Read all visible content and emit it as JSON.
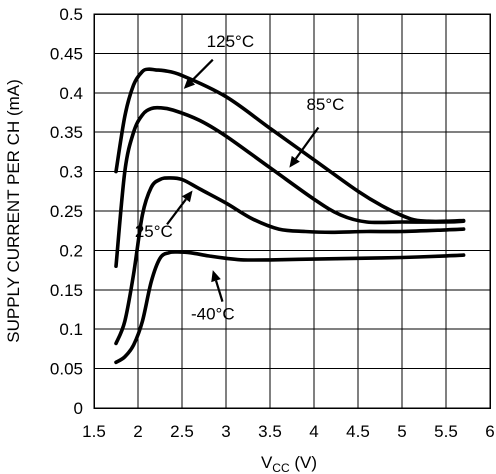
{
  "chart_data": {
    "type": "line",
    "title": "",
    "xlabel": {
      "main": "V",
      "sub": "CC",
      "unit": " (V)"
    },
    "ylabel": "SUPPLY CURRENT PER CH (mA)",
    "xlim": [
      1.5,
      6
    ],
    "ylim": [
      0,
      0.5
    ],
    "grid": true,
    "x_ticks": [
      "1.5",
      "2",
      "2.5",
      "3",
      "3.5",
      "4",
      "4.5",
      "5",
      "5.5",
      "6"
    ],
    "y_ticks": [
      "0",
      "0.05",
      "0.1",
      "0.15",
      "0.2",
      "0.25",
      "0.3",
      "0.35",
      "0.4",
      "0.45",
      "0.5"
    ],
    "series": [
      {
        "name": "125°C",
        "x": [
          1.75,
          1.85,
          1.95,
          2.05,
          2.12,
          2.2,
          2.3,
          2.5,
          3.0,
          3.5,
          4.0,
          4.5,
          4.8,
          5.1,
          5.3,
          5.5,
          5.7
        ],
        "y": [
          0.3,
          0.37,
          0.41,
          0.427,
          0.43,
          0.429,
          0.428,
          0.422,
          0.395,
          0.355,
          0.315,
          0.275,
          0.255,
          0.24,
          0.237,
          0.237,
          0.238
        ]
      },
      {
        "name": "85°C",
        "x": [
          1.75,
          1.85,
          1.95,
          2.05,
          2.15,
          2.25,
          2.4,
          2.7,
          3.0,
          3.5,
          4.0,
          4.3,
          4.6,
          5.0,
          5.5,
          5.7
        ],
        "y": [
          0.18,
          0.3,
          0.35,
          0.372,
          0.38,
          0.381,
          0.378,
          0.365,
          0.345,
          0.305,
          0.265,
          0.245,
          0.236,
          0.236,
          0.236,
          0.237
        ]
      },
      {
        "name": "25°C",
        "x": [
          1.75,
          1.85,
          1.95,
          2.05,
          2.15,
          2.25,
          2.35,
          2.5,
          2.7,
          3.0,
          3.3,
          3.6,
          3.9,
          4.2,
          4.6,
          5.0,
          5.5,
          5.7
        ],
        "y": [
          0.082,
          0.11,
          0.17,
          0.245,
          0.28,
          0.29,
          0.292,
          0.29,
          0.278,
          0.26,
          0.24,
          0.227,
          0.224,
          0.223,
          0.224,
          0.224,
          0.226,
          0.227
        ]
      },
      {
        "name": "-40°C",
        "x": [
          1.75,
          1.85,
          1.95,
          2.05,
          2.15,
          2.25,
          2.35,
          2.45,
          2.6,
          2.8,
          3.0,
          3.2,
          3.5,
          4.0,
          4.5,
          5.0,
          5.5,
          5.7
        ],
        "y": [
          0.058,
          0.065,
          0.08,
          0.11,
          0.16,
          0.19,
          0.197,
          0.198,
          0.197,
          0.193,
          0.19,
          0.188,
          0.188,
          0.189,
          0.19,
          0.191,
          0.193,
          0.194
        ]
      }
    ],
    "annotations": [
      {
        "text": "125°C",
        "series": "125°C",
        "label_at": [
          3.05,
          0.458
        ],
        "arrow_from": [
          2.85,
          0.442
        ],
        "arrow_to": [
          2.52,
          0.405
        ]
      },
      {
        "text": "85°C",
        "series": "85°C",
        "label_at": [
          4.13,
          0.378
        ],
        "arrow_from": [
          4.05,
          0.356
        ],
        "arrow_to": [
          3.72,
          0.305
        ]
      },
      {
        "text": "25°C",
        "series": "25°C",
        "label_at": [
          2.18,
          0.217
        ],
        "arrow_from": [
          2.33,
          0.233
        ],
        "arrow_to": [
          2.62,
          0.276
        ]
      },
      {
        "text": "-40°C",
        "series": "-40°C",
        "label_at": [
          2.85,
          0.112
        ],
        "arrow_from": [
          2.96,
          0.135
        ],
        "arrow_to": [
          2.85,
          0.175
        ]
      }
    ]
  }
}
